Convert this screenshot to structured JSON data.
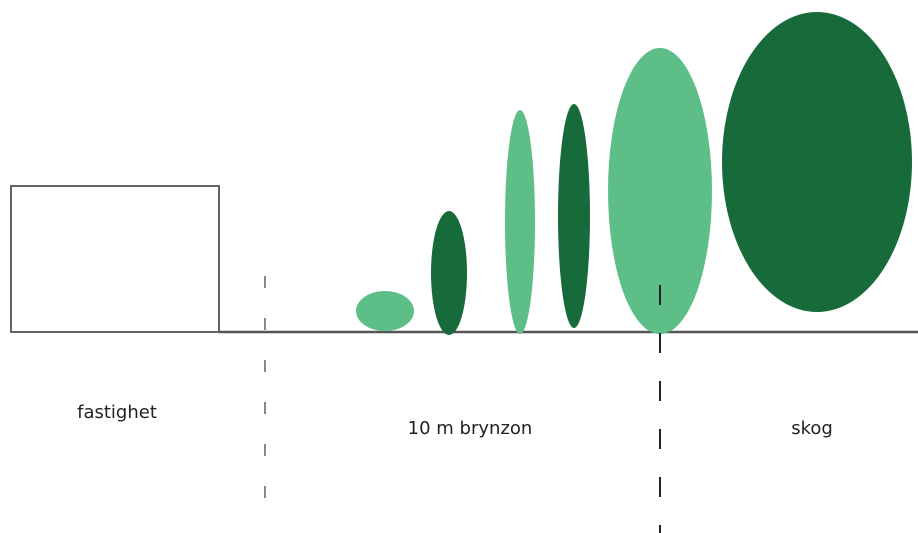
{
  "labels": {
    "left": "fastighet",
    "middle": "10 m brynzon",
    "right": "skog"
  }
}
